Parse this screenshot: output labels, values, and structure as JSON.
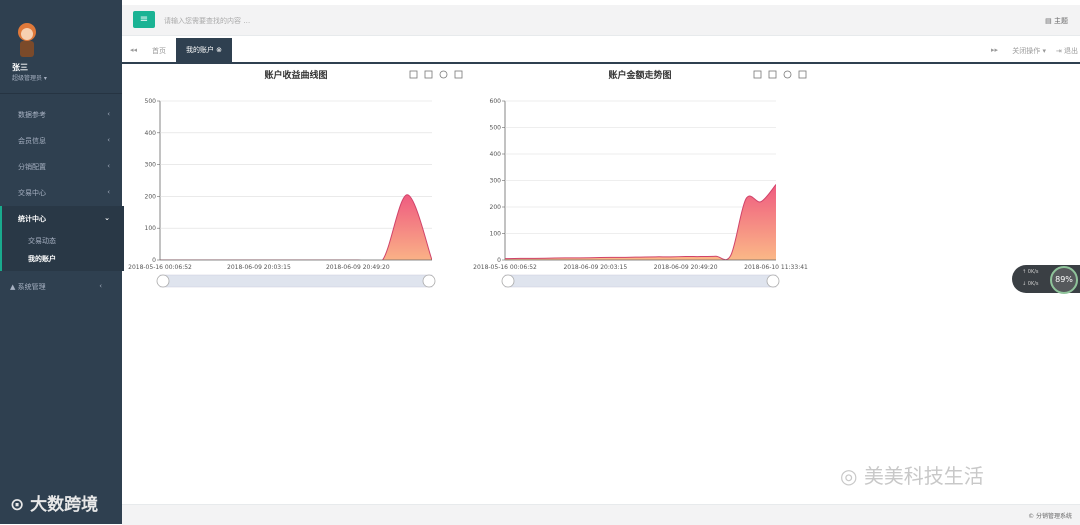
{
  "sidebar": {
    "user": {
      "name": "张三",
      "role": "超级管理员 ▾"
    },
    "menu": [
      {
        "label": "数据参考"
      },
      {
        "label": "会员信息"
      },
      {
        "label": "分销配置"
      },
      {
        "label": "交易中心"
      },
      {
        "label": "统计中心",
        "children": [
          "交易动态",
          "我的账户"
        ]
      },
      {
        "label": "系统管理"
      }
    ]
  },
  "topbar": {
    "search_placeholder": "请输入您需要查找的内容 …",
    "theme": "主题"
  },
  "tabs": [
    "首页",
    "我的账户"
  ],
  "tab_actions": {
    "close": "关闭操作 ▾",
    "logout": "退出"
  },
  "charts": [
    {
      "type": "area",
      "title": "账户收益曲线图",
      "categories": [
        "2018-05-16 00:06:52",
        null,
        null,
        null,
        "2018-06-09 20:03:15",
        null,
        null,
        null,
        "2018-06-09 20:49:20",
        null,
        null,
        null
      ],
      "values": [
        0,
        0,
        0,
        0,
        0,
        0,
        0,
        0,
        0,
        0,
        205,
        0
      ],
      "ylim": [
        0,
        500
      ],
      "yticks": [
        0,
        100,
        200,
        300,
        400,
        500
      ],
      "grid": true,
      "colors": [
        "#ef5b80",
        "#fbb887"
      ]
    },
    {
      "type": "area",
      "title": "账户金额走势图",
      "categories": [
        "2018-05-16 00:06:52",
        null,
        null,
        null,
        null,
        null,
        "2018-06-09 20:03:15",
        null,
        null,
        null,
        null,
        null,
        "2018-06-09 20:49:20",
        null,
        null,
        null,
        null,
        null,
        "2018-06-10 11:33:41"
      ],
      "values": [
        5,
        6,
        6,
        7,
        8,
        8,
        9,
        10,
        10,
        11,
        12,
        12,
        13,
        13,
        14,
        18,
        230,
        220,
        285
      ],
      "ylim": [
        0,
        600
      ],
      "yticks": [
        0,
        100,
        200,
        300,
        400,
        500,
        600
      ],
      "grid": true,
      "colors": [
        "#ef5b80",
        "#fbb887"
      ]
    }
  ],
  "monitor": {
    "percent": "89%",
    "upload": "0K/s",
    "download": "0K/s"
  },
  "footer": "© 分销管理系统",
  "watermarks": [
    "美美科技生活",
    "大数跨境"
  ]
}
